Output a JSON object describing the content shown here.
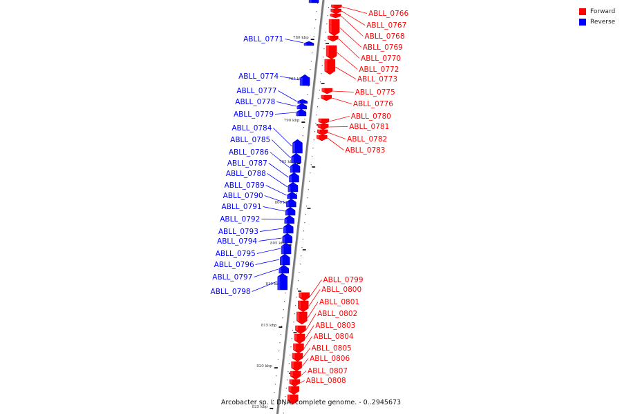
{
  "title": "Arcobacter sp. L DNA, complete genome. - 0..2945673",
  "legend": {
    "forward_label": "Forward",
    "reverse_label": "Reverse",
    "forward_color": "#ff0000",
    "reverse_color": "#0000ff"
  },
  "backbone_color": "#777777",
  "ticks": [
    "780 kbp",
    "785 kbp",
    "790 kbp",
    "795 kbp",
    "800 kbp",
    "805 kbp",
    "810 kbp",
    "815 kbp",
    "820 kbp",
    "825 kbp"
  ],
  "reverse_genes": [
    "ABLL_0771",
    "ABLL_0774",
    "ABLL_0777",
    "ABLL_0778",
    "ABLL_0779",
    "ABLL_0784",
    "ABLL_0785",
    "ABLL_0786",
    "ABLL_0787",
    "ABLL_0788",
    "ABLL_0789",
    "ABLL_0790",
    "ABLL_0791",
    "ABLL_0792",
    "ABLL_0793",
    "ABLL_0794",
    "ABLL_0795",
    "ABLL_0796",
    "ABLL_0797",
    "ABLL_0798"
  ],
  "forward_genes": [
    "ABLL_0766",
    "ABLL_0767",
    "ABLL_0768",
    "ABLL_0769",
    "ABLL_0770",
    "ABLL_0772",
    "ABLL_0773",
    "ABLL_0775",
    "ABLL_0776",
    "ABLL_0780",
    "ABLL_0781",
    "ABLL_0782",
    "ABLL_0783",
    "ABLL_0799",
    "ABLL_0800",
    "ABLL_0801",
    "ABLL_0802",
    "ABLL_0803",
    "ABLL_0804",
    "ABLL_0805",
    "ABLL_0806",
    "ABLL_0807",
    "ABLL_0808"
  ]
}
